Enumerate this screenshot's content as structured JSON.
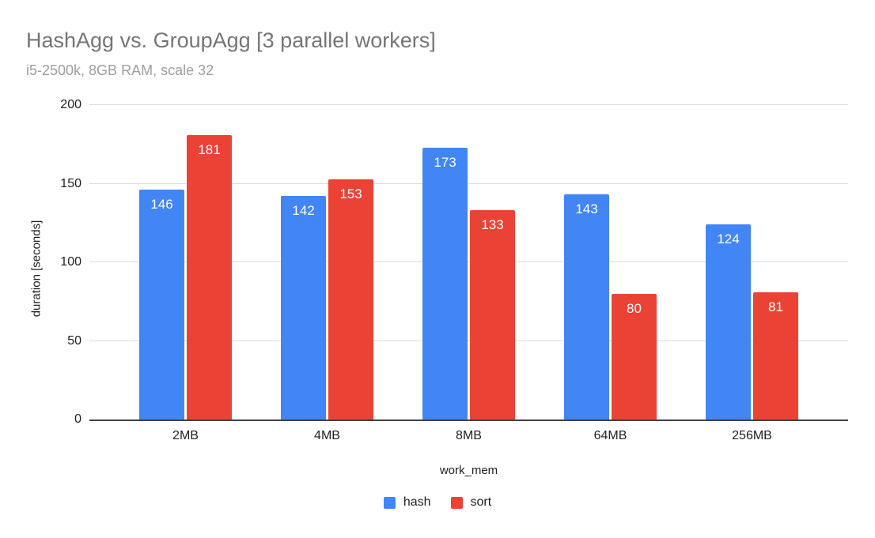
{
  "chart_data": {
    "type": "bar",
    "title": "HashAgg vs. GroupAgg [3 parallel workers]",
    "subtitle": "i5-2500k, 8GB RAM, scale 32",
    "xlabel": "work_mem",
    "ylabel": "duration [seconds]",
    "categories": [
      "2MB",
      "4MB",
      "8MB",
      "64MB",
      "256MB"
    ],
    "series": [
      {
        "name": "hash",
        "color": "#4285f4",
        "values": [
          146,
          142,
          173,
          143,
          124
        ]
      },
      {
        "name": "sort",
        "color": "#ea4335",
        "values": [
          181,
          153,
          133,
          80,
          81
        ]
      }
    ],
    "ylim": [
      0,
      200
    ],
    "yticks": [
      0,
      50,
      100,
      150,
      200
    ],
    "grid": "horizontal",
    "legend_position": "bottom",
    "bar_value_labels": true,
    "colors": {
      "title": "#757575",
      "subtitle": "#9e9e9e",
      "axis_label": "#202124",
      "baseline": "#424242",
      "gridline": "#dadce0",
      "bar_label": "#ffffff",
      "background": "#ffffff"
    }
  }
}
